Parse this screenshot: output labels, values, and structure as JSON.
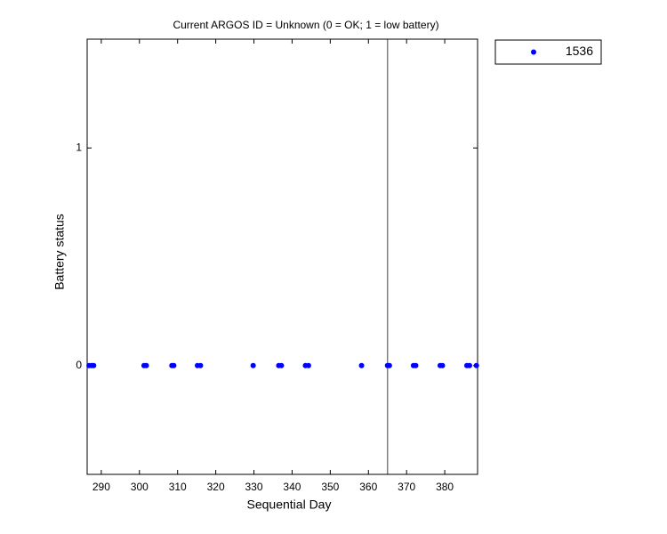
{
  "chart_data": {
    "type": "scatter",
    "title": "Current ARGOS ID = Unknown  (0 = OK; 1 = low battery)",
    "x_label": "Sequential Day",
    "y_label": "Battery status",
    "series": [
      {
        "name": "1536",
        "color": "#0000ff",
        "x": [
          286.8,
          287.5,
          288.0,
          301.2,
          301.8,
          308.5,
          309.0,
          315.2,
          316.0,
          329.8,
          336.5,
          337.2,
          343.5,
          344.3,
          358.2,
          365.0,
          365.5,
          371.8,
          372.4,
          378.8,
          379.4,
          385.8,
          386.5,
          388.3
        ],
        "values": [
          0,
          0,
          0,
          0,
          0,
          0,
          0,
          0,
          0,
          0,
          0,
          0,
          0,
          0,
          0,
          0,
          0,
          0,
          0,
          0,
          0,
          0,
          0,
          0
        ]
      }
    ],
    "vline": 365,
    "vline_color": "#808080",
    "xlim": [
      286.3,
      388.6
    ],
    "xticks": [
      290,
      300,
      310,
      320,
      330,
      340,
      350,
      360,
      370,
      380
    ],
    "ylim": [
      -0.5,
      1.5
    ],
    "yticks": [
      0,
      1
    ],
    "legend": "outside-top-right"
  }
}
